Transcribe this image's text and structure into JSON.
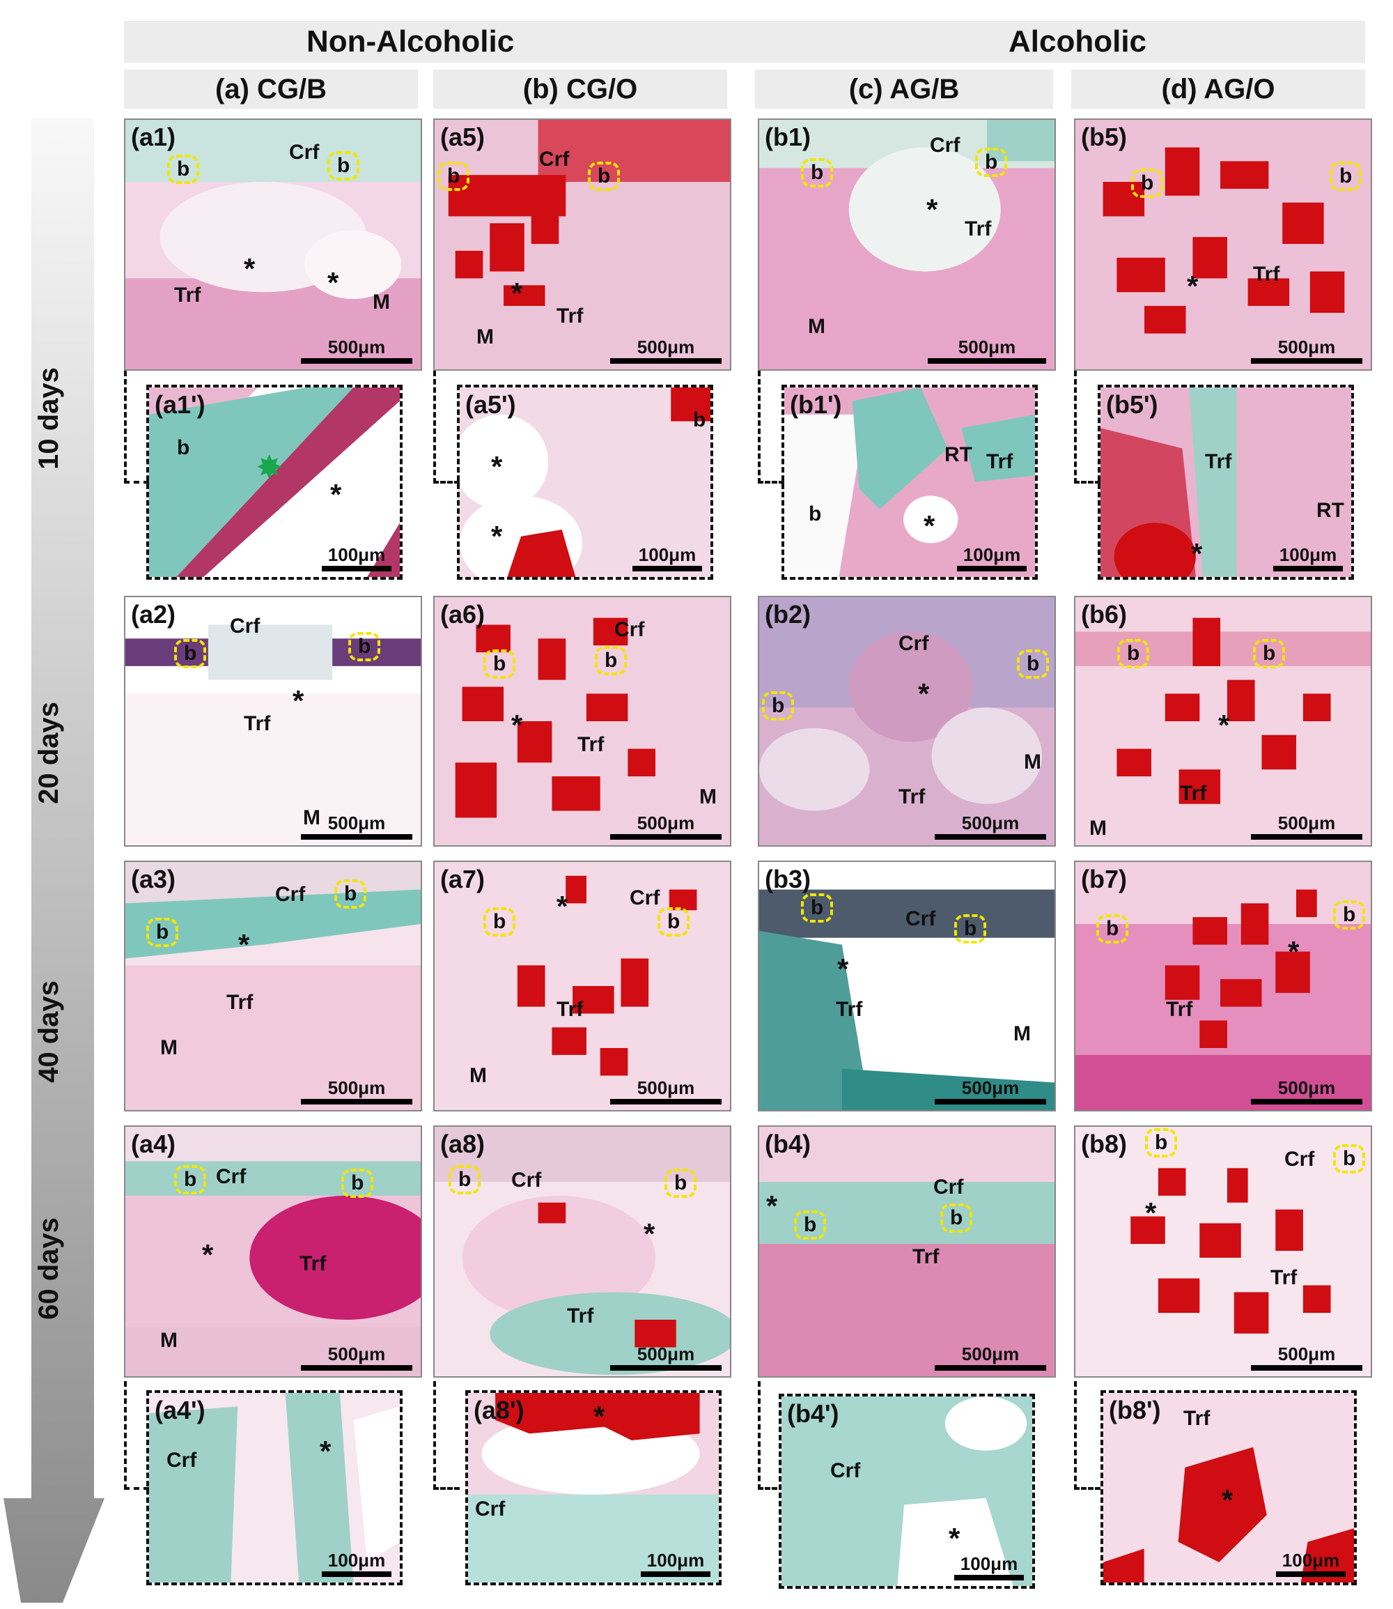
{
  "groups": {
    "left": "Non-Alcoholic",
    "right": "Alcoholic"
  },
  "columns": [
    "(a) CG/B",
    "(b) CG/O",
    "(c) AG/B",
    "(d) AG/O"
  ],
  "time_points": [
    "10 days",
    "20 days",
    "40 days",
    "60 days"
  ],
  "scale_bars": {
    "large": "500μm",
    "small": "100μm"
  },
  "panels": {
    "a1": "(a1)",
    "a5": "(a5)",
    "b1": "(b1)",
    "b5": "(b5)",
    "a1p": "(a1')",
    "a5p": "(a5')",
    "b1p": "(b1')",
    "b5p": "(b5')",
    "a2": "(a2)",
    "a6": "(a6)",
    "b2": "(b2)",
    "b6": "(b6)",
    "a3": "(a3)",
    "a7": "(a7)",
    "b3": "(b3)",
    "b7": "(b7)",
    "a4": "(a4)",
    "a8": "(a8)",
    "b4": "(b4)",
    "b8": "(b8)",
    "a4p": "(a4')",
    "a8p": "(a8')",
    "b4p": "(b4')",
    "b8p": "(b8')"
  },
  "annotations": {
    "bone": "b",
    "crf": "Crf",
    "trf": "Trf",
    "marrow": "M",
    "rt": "RT",
    "asterisk": "*"
  },
  "colors": {
    "stain_pink": "#e7a6c9",
    "stain_green": "#7fc7bd",
    "stain_red": "#cf0d12",
    "highlight_yellow": "#f2e600"
  }
}
